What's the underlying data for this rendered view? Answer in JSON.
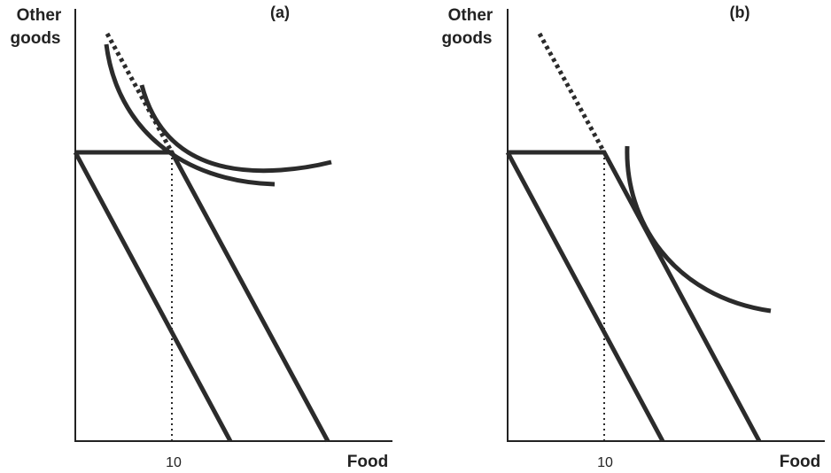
{
  "panels": [
    {
      "label": "(a)",
      "y_axis_title": [
        "Other",
        "goods"
      ],
      "x_axis_title": "Food",
      "x_tick": "10"
    },
    {
      "label": "(b)",
      "y_axis_title": [
        "Other",
        "goods"
      ],
      "x_axis_title": "Food",
      "x_tick": "10"
    }
  ]
}
